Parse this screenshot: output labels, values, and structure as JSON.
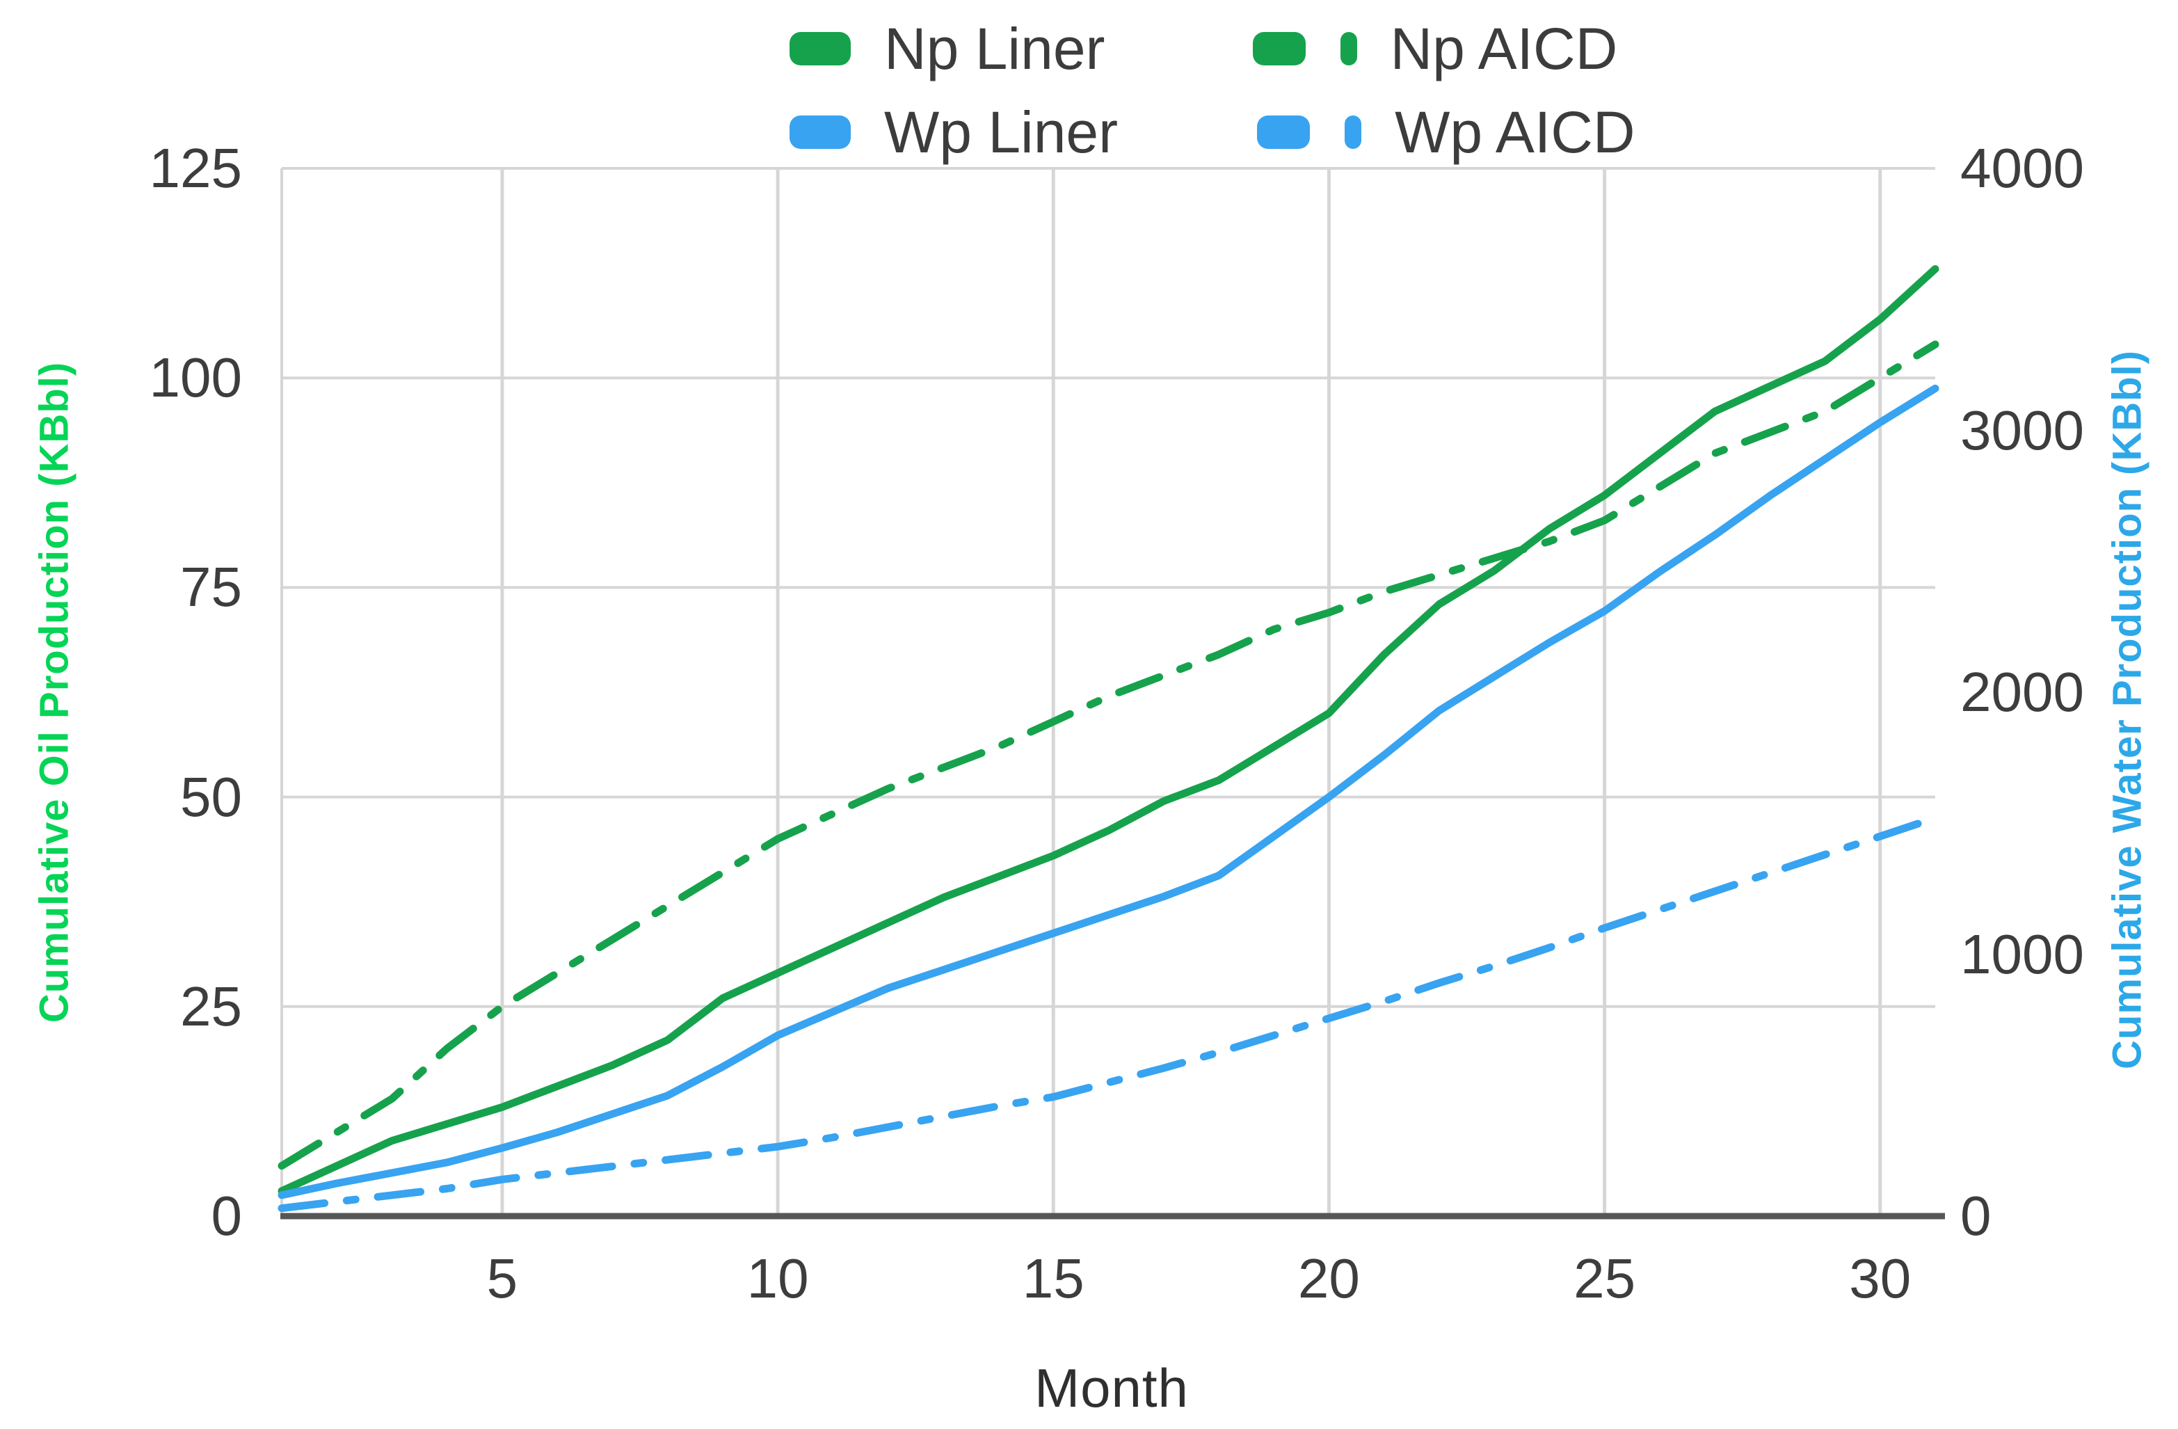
{
  "chart_data": {
    "type": "line",
    "title": "",
    "grid": true,
    "legend_position": "top",
    "x_axis": {
      "label": "Month",
      "ticks": [
        5,
        10,
        15,
        20,
        25,
        30
      ],
      "range": [
        1,
        31
      ]
    },
    "left_axis": {
      "label": "Cumulative Oil Production (KBbl)",
      "ticks": [
        0,
        25,
        50,
        75,
        100,
        125
      ],
      "range": [
        0,
        125
      ],
      "color": "#06d456"
    },
    "right_axis": {
      "label": "Cumulative Water Production (KBbl)",
      "ticks": [
        0,
        1000,
        2000,
        3000,
        4000
      ],
      "range": [
        0,
        4000
      ],
      "color": "#2ca8e8"
    },
    "x": [
      1,
      2,
      3,
      4,
      5,
      6,
      7,
      8,
      9,
      10,
      11,
      12,
      13,
      14,
      15,
      16,
      17,
      18,
      19,
      20,
      21,
      22,
      23,
      24,
      25,
      26,
      27,
      28,
      29,
      30,
      31
    ],
    "series": [
      {
        "name": "Np Liner",
        "axis": "left",
        "dash": "solid",
        "color": "#16a24c",
        "values": [
          3,
          6,
          9,
          11,
          13,
          15.5,
          18,
          21,
          26,
          29,
          32,
          35,
          38,
          40.5,
          43,
          46,
          49.5,
          52,
          56,
          60,
          67,
          73,
          77,
          82,
          86,
          91,
          96,
          99,
          102,
          107,
          113
        ]
      },
      {
        "name": "Np AICD",
        "axis": "left",
        "dash": "dashdot",
        "color": "#16a24c",
        "values": [
          6,
          10,
          14,
          20,
          25,
          29,
          33,
          37,
          41,
          45,
          48,
          51,
          53.5,
          56,
          59,
          62,
          64.5,
          67,
          70,
          72,
          74.5,
          76.5,
          78.5,
          80.5,
          83,
          87,
          91,
          93.5,
          96,
          100,
          104
        ]
      },
      {
        "name": "Wp Liner",
        "axis": "right",
        "dash": "solid",
        "color": "#38a3f0",
        "values": [
          80,
          125,
          165,
          205,
          260,
          320,
          390,
          460,
          570,
          690,
          780,
          870,
          940,
          1010,
          1080,
          1150,
          1220,
          1300,
          1450,
          1600,
          1760,
          1930,
          2060,
          2190,
          2310,
          2460,
          2600,
          2750,
          2890,
          3030,
          3160
        ]
      },
      {
        "name": "Wp AICD",
        "axis": "right",
        "dash": "dashdot",
        "color": "#38a3f0",
        "values": [
          30,
          55,
          80,
          105,
          140,
          165,
          190,
          215,
          240,
          265,
          300,
          340,
          380,
          420,
          455,
          510,
          565,
          625,
          690,
          755,
          820,
          890,
          955,
          1025,
          1100,
          1170,
          1240,
          1310,
          1380,
          1450,
          1520
        ]
      }
    ],
    "style": {
      "gridline_color": "#d6d6d6",
      "axis_line_color": "#565656",
      "tick_color": "#3d3d3d"
    }
  }
}
